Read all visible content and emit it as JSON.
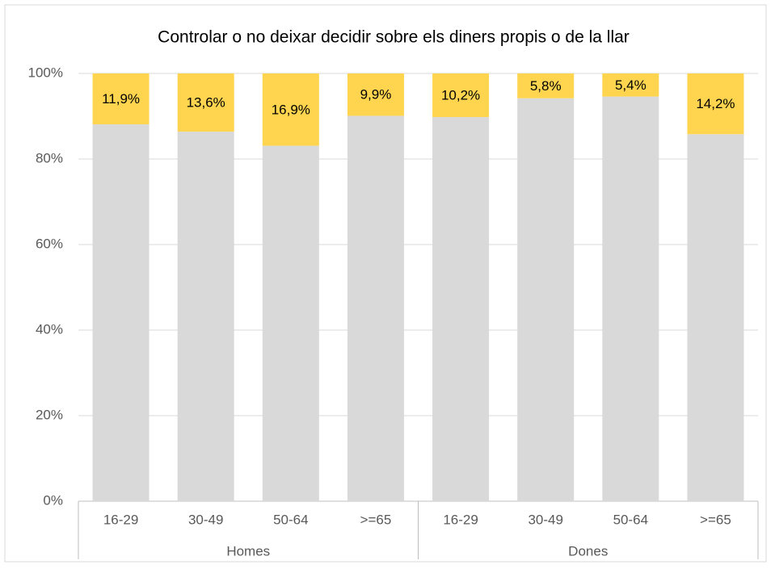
{
  "chart_data": {
    "type": "stacked_bar",
    "title": "Controlar o no deixar decidir sobre els diners propis o de la llar",
    "groups": [
      {
        "label": "Homes",
        "categories": [
          "16-29",
          "30-49",
          "50-64",
          ">=65"
        ]
      },
      {
        "label": "Dones",
        "categories": [
          "16-29",
          "30-49",
          "50-64",
          ">=65"
        ]
      }
    ],
    "series": [
      {
        "color": "#d9d9d9",
        "values": [
          88.1,
          86.4,
          83.1,
          90.1,
          89.8,
          94.2,
          94.6,
          85.8
        ]
      },
      {
        "color": "#ffd54f",
        "values": [
          11.9,
          13.6,
          16.9,
          9.9,
          10.2,
          5.8,
          5.4,
          14.2
        ],
        "value_labels": [
          "11,9%",
          "13,6%",
          "16,9%",
          "9,9%",
          "10,2%",
          "5,8%",
          "5,4%",
          "14,2%"
        ]
      }
    ],
    "ylim": [
      0,
      100
    ],
    "yticks": [
      {
        "value": 0,
        "label": "0%"
      },
      {
        "value": 20,
        "label": "20%"
      },
      {
        "value": 40,
        "label": "40%"
      },
      {
        "value": 60,
        "label": "60%"
      },
      {
        "value": 80,
        "label": "80%"
      },
      {
        "value": 100,
        "label": "100%"
      }
    ],
    "grid": true
  }
}
